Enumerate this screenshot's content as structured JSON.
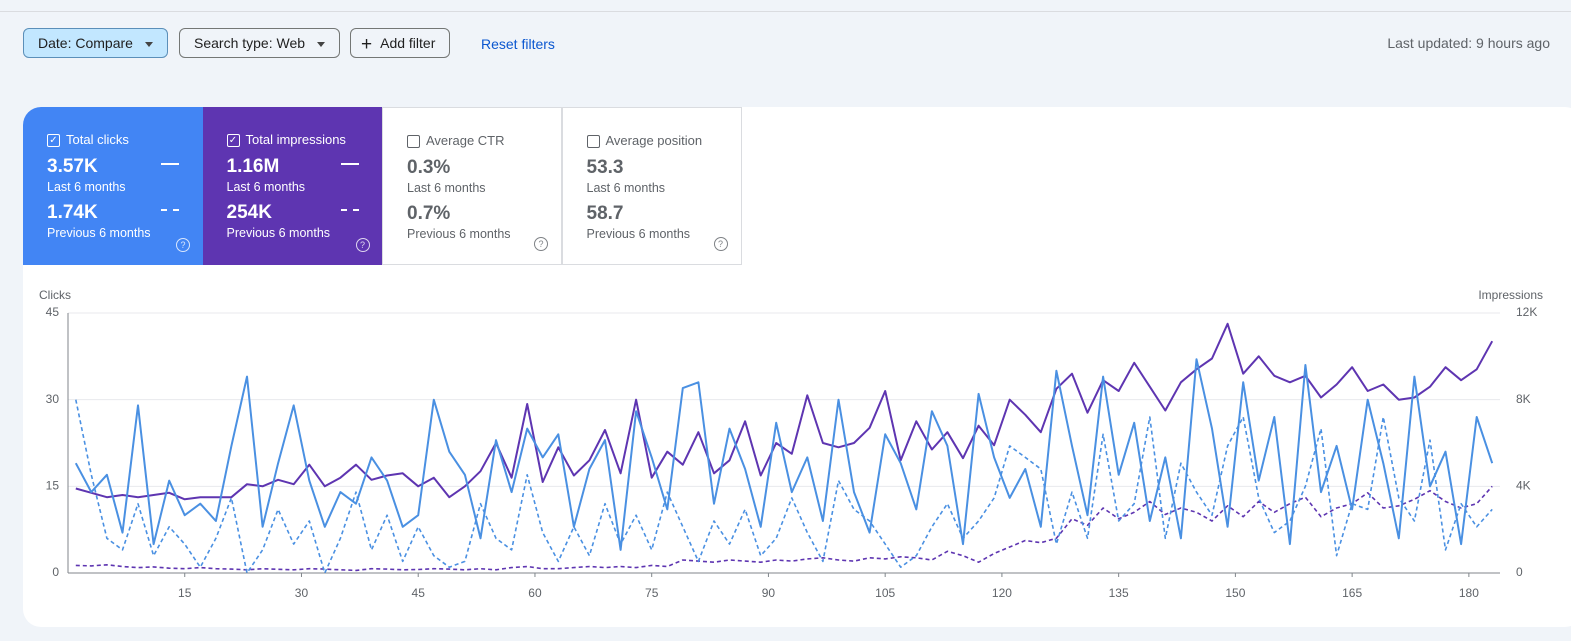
{
  "toolbar": {
    "date_button": "Date: Compare",
    "search_type_button": "Search type: Web",
    "add_filter_button": "Add filter",
    "reset_link": "Reset filters",
    "last_updated": "Last updated: 9 hours ago"
  },
  "scorecards": [
    {
      "label": "Total clicks",
      "checked": true,
      "color": "#4285f4",
      "current": {
        "value": "3.57K",
        "period": "Last 6 months"
      },
      "previous": {
        "value": "1.74K",
        "period": "Previous 6 months"
      }
    },
    {
      "label": "Total impressions",
      "checked": true,
      "color": "#5e35b1",
      "current": {
        "value": "1.16M",
        "period": "Last 6 months"
      },
      "previous": {
        "value": "254K",
        "period": "Previous 6 months"
      }
    },
    {
      "label": "Average CTR",
      "checked": false,
      "color": "#ffffff",
      "current": {
        "value": "0.3%",
        "period": "Last 6 months"
      },
      "previous": {
        "value": "0.7%",
        "period": "Previous 6 months"
      }
    },
    {
      "label": "Average position",
      "checked": false,
      "color": "#ffffff",
      "current": {
        "value": "53.3",
        "period": "Last 6 months"
      },
      "previous": {
        "value": "58.7",
        "period": "Previous 6 months"
      }
    }
  ],
  "chart_data": {
    "type": "line",
    "ylabel": "Clicks",
    "y2label": "Impressions",
    "xlim": [
      0,
      184
    ],
    "xticks": [
      15,
      30,
      45,
      60,
      75,
      90,
      105,
      120,
      135,
      150,
      165,
      180
    ],
    "ylim": [
      0,
      45
    ],
    "yticks": [
      0,
      15,
      30,
      45
    ],
    "y2lim": [
      0,
      12000
    ],
    "y2ticks": [
      0,
      {
        "value": 4000,
        "label": "4K"
      },
      {
        "value": 8000,
        "label": "8K"
      },
      {
        "value": 12000,
        "label": "12K"
      }
    ],
    "grid": true,
    "x": [
      1,
      3,
      5,
      7,
      9,
      11,
      13,
      15,
      17,
      19,
      21,
      23,
      25,
      27,
      29,
      31,
      33,
      35,
      37,
      39,
      41,
      43,
      45,
      47,
      49,
      51,
      53,
      55,
      57,
      59,
      61,
      63,
      65,
      67,
      69,
      71,
      73,
      75,
      77,
      79,
      81,
      83,
      85,
      87,
      89,
      91,
      93,
      95,
      97,
      99,
      101,
      103,
      105,
      107,
      109,
      111,
      113,
      115,
      117,
      119,
      121,
      123,
      125,
      127,
      129,
      131,
      133,
      135,
      137,
      139,
      141,
      143,
      145,
      147,
      149,
      151,
      153,
      155,
      157,
      159,
      161,
      163,
      165,
      167,
      169,
      171,
      173,
      175,
      177,
      179,
      181,
      183
    ],
    "series": [
      {
        "color": "#4a90e2",
        "dashed": false,
        "axis": "y",
        "values": [
          19,
          14,
          17,
          7,
          29,
          5,
          16,
          10,
          12,
          9,
          22,
          34,
          8,
          19,
          29,
          16,
          8,
          14,
          12,
          20,
          16,
          8,
          10,
          30,
          21,
          17,
          6,
          23,
          14,
          25,
          20,
          24,
          8,
          18,
          23,
          4,
          28,
          20,
          11,
          32,
          33,
          12,
          25,
          18,
          8,
          26,
          14,
          20,
          9,
          30,
          14,
          7,
          24,
          19,
          11,
          28,
          22,
          5,
          31,
          20,
          13,
          18,
          8,
          35,
          22,
          10,
          34,
          17,
          26,
          9,
          20,
          6,
          37,
          25,
          8,
          33,
          16,
          27,
          5,
          36,
          14,
          22,
          11,
          30,
          19,
          6,
          34,
          15,
          21,
          5,
          27,
          19
        ]
      },
      {
        "color": "#4a90e2",
        "dashed": true,
        "axis": "y",
        "values": [
          30,
          17,
          6,
          4,
          12,
          3,
          8,
          5,
          1,
          6,
          13,
          0,
          4,
          11,
          5,
          9,
          0,
          6,
          14,
          4,
          10,
          2,
          8,
          3,
          1,
          2,
          12,
          6,
          4,
          17,
          7,
          2,
          8,
          3,
          12,
          5,
          10,
          4,
          14,
          8,
          2,
          9,
          5,
          11,
          3,
          6,
          13,
          7,
          2,
          16,
          11,
          9,
          5,
          1,
          3,
          8,
          12,
          6,
          9,
          13,
          22,
          20,
          18,
          5,
          14,
          6,
          24,
          9,
          12,
          27,
          6,
          19,
          14,
          10,
          22,
          27,
          13,
          7,
          9,
          15,
          25,
          3,
          12,
          11,
          27,
          13,
          9,
          23,
          4,
          12,
          8,
          11
        ]
      },
      {
        "color": "#5e35b1",
        "dashed": false,
        "axis": "y2",
        "values": [
          3900,
          3700,
          3500,
          3600,
          3500,
          3600,
          3700,
          3400,
          3500,
          3500,
          3500,
          4100,
          4000,
          4300,
          4100,
          5000,
          4000,
          4400,
          5000,
          4300,
          4500,
          4600,
          4000,
          4400,
          3500,
          4000,
          4700,
          6000,
          4400,
          7800,
          4200,
          5800,
          4500,
          5200,
          6600,
          4600,
          8000,
          4400,
          5600,
          5000,
          6500,
          4600,
          5200,
          7000,
          4500,
          6000,
          5500,
          8200,
          6000,
          5800,
          6000,
          6700,
          8400,
          5200,
          7000,
          5700,
          6500,
          5300,
          6800,
          5900,
          8000,
          7300,
          6500,
          8500,
          9200,
          7400,
          8900,
          8400,
          9700,
          8600,
          7500,
          8800,
          9400,
          9900,
          11500,
          9200,
          10000,
          9100,
          8800,
          9100,
          8100,
          8700,
          9500,
          8400,
          8700,
          8000,
          8100,
          8600,
          9500,
          8900,
          9400,
          10700
        ]
      },
      {
        "color": "#5e35b1",
        "dashed": true,
        "axis": "y2",
        "values": [
          350,
          330,
          380,
          300,
          250,
          280,
          220,
          200,
          250,
          200,
          180,
          150,
          200,
          170,
          150,
          200,
          180,
          150,
          120,
          200,
          180,
          150,
          160,
          200,
          180,
          150,
          200,
          150,
          250,
          300,
          200,
          200,
          250,
          300,
          250,
          300,
          250,
          350,
          300,
          600,
          550,
          500,
          600,
          550,
          500,
          600,
          550,
          650,
          700,
          600,
          550,
          700,
          650,
          750,
          700,
          600,
          1000,
          800,
          500,
          900,
          1200,
          1500,
          1400,
          1600,
          2500,
          2200,
          3000,
          2500,
          2800,
          3300,
          2700,
          3000,
          2800,
          2400,
          3100,
          2600,
          3300,
          2800,
          3200,
          3500,
          2600,
          3000,
          3200,
          3700,
          3000,
          3100,
          3400,
          3800,
          3300,
          3000,
          3200,
          4000
        ]
      }
    ]
  }
}
